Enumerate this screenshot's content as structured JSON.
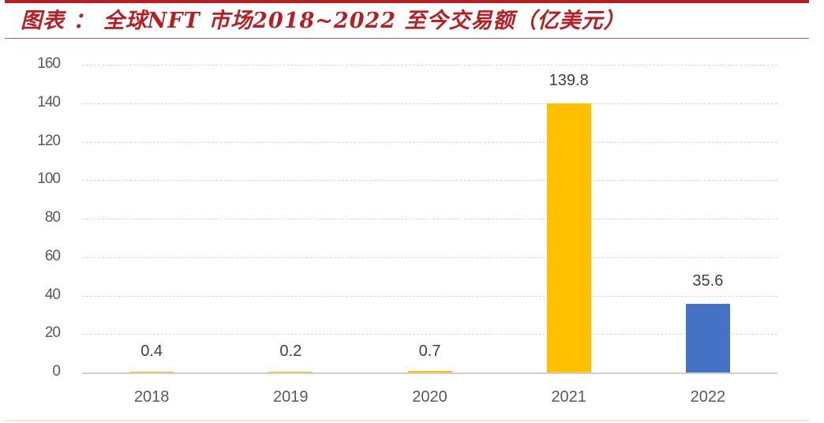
{
  "header": {
    "title": "图表 ： 全球NFT 市场2018~2022 至今交易额（亿美元）",
    "accent_color": "#b41f24"
  },
  "chart_data": {
    "type": "bar",
    "title": "全球NFT 市场2018~2022 至今交易额（亿美元）",
    "xlabel": "",
    "ylabel": "",
    "categories": [
      "2018",
      "2019",
      "2020",
      "2021",
      "2022"
    ],
    "values": [
      0.4,
      0.2,
      0.7,
      139.8,
      35.6
    ],
    "data_labels": [
      "0.4",
      "0.2",
      "0.7",
      "139.8",
      "35.6"
    ],
    "bar_colors": [
      "#ffc000",
      "#ffc000",
      "#ffc000",
      "#ffc000",
      "#4472c4"
    ],
    "ylim": [
      0,
      160
    ],
    "yticks": [
      "0",
      "20",
      "40",
      "60",
      "80",
      "100",
      "120",
      "140",
      "160"
    ],
    "grid": true,
    "legend": null
  }
}
